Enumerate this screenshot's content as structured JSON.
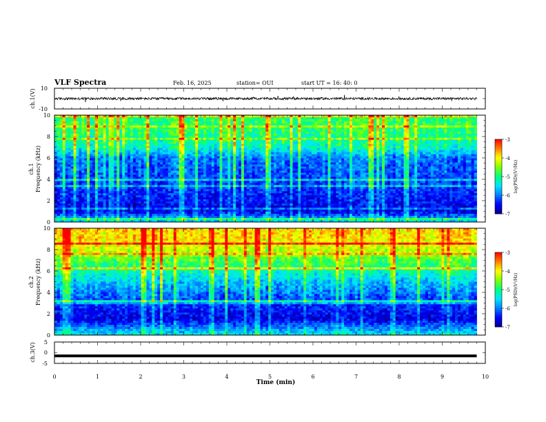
{
  "header": {
    "title": "VLF Spectra",
    "date": "Feb. 16, 2025",
    "station": "station= OUI",
    "start_ut": "start UT =  16: 40: 0"
  },
  "colors": {
    "colormap": [
      "#00008b",
      "#0000ff",
      "#0080ff",
      "#00e5ff",
      "#00ff80",
      "#80ff00",
      "#ffff00",
      "#ff8000",
      "#ff0000",
      "#ffffff"
    ]
  },
  "chart_data": [
    {
      "type": "line",
      "ylabel": "ch.1(V)",
      "ylim": [
        -10,
        10
      ],
      "yticks": [
        "10",
        "-10"
      ],
      "xlim": [
        0,
        10
      ],
      "baseline_v": 0,
      "noise_band_v": 1.2
    },
    {
      "type": "heatmap",
      "ylabel": "ch.1\nFrequency (kHz)",
      "ylabel_line1": "ch.1",
      "ylabel_line2": "Frequency (kHz)",
      "ylim": [
        0,
        10
      ],
      "yticks": [
        "0",
        "2",
        "4",
        "6",
        "8",
        "10"
      ],
      "xlim": [
        0,
        10
      ],
      "data_end_min": 9.8,
      "colorbar": {
        "label": "log(PSD)(V²/Hz)",
        "range": [
          -7,
          -3
        ],
        "ticks": [
          "-3",
          "-4",
          "-5",
          "-6",
          "-7"
        ]
      },
      "levels_by_freq_khz": [
        {
          "f": 0.0,
          "level": -5.4
        },
        {
          "f": 1.0,
          "level": -6.6
        },
        {
          "f": 2.5,
          "level": -6.4
        },
        {
          "f": 4.0,
          "level": -6.2
        },
        {
          "f": 6.0,
          "level": -6.0
        },
        {
          "f": 7.0,
          "level": -5.2
        },
        {
          "f": 8.5,
          "level": -4.9
        },
        {
          "f": 10.0,
          "level": -4.8
        }
      ]
    },
    {
      "type": "heatmap",
      "ylabel": "ch.2\nFrequency (kHz)",
      "ylabel_line1": "ch.2",
      "ylabel_line2": "Frequency (kHz)",
      "ylim": [
        0,
        10
      ],
      "yticks": [
        "0",
        "2",
        "4",
        "6",
        "8",
        "10"
      ],
      "xlim": [
        0,
        10
      ],
      "data_end_min": 9.8,
      "colorbar": {
        "label": "log(PSD)(V²/Hz)",
        "range": [
          -7,
          -3
        ],
        "ticks": [
          "-3",
          "-4",
          "-5",
          "-6",
          "-7"
        ]
      },
      "levels_by_freq_khz": [
        {
          "f": 0.0,
          "level": -5.4
        },
        {
          "f": 1.5,
          "level": -6.6
        },
        {
          "f": 3.0,
          "level": -6.3
        },
        {
          "f": 5.0,
          "level": -5.6
        },
        {
          "f": 6.5,
          "level": -4.9
        },
        {
          "f": 8.0,
          "level": -4.2
        },
        {
          "f": 9.0,
          "level": -3.9
        },
        {
          "f": 10.0,
          "level": -3.8
        }
      ]
    },
    {
      "type": "line",
      "ylabel": "ch.3(V)",
      "ylim": [
        -5,
        5
      ],
      "yticks": [
        "5",
        "0",
        "-5"
      ],
      "xlim": [
        0,
        10
      ],
      "constant_v": -1.5
    }
  ],
  "xaxis": {
    "label": "Time (min)",
    "ticks": [
      "0",
      "1",
      "2",
      "3",
      "4",
      "5",
      "6",
      "7",
      "8",
      "9",
      "10"
    ]
  }
}
